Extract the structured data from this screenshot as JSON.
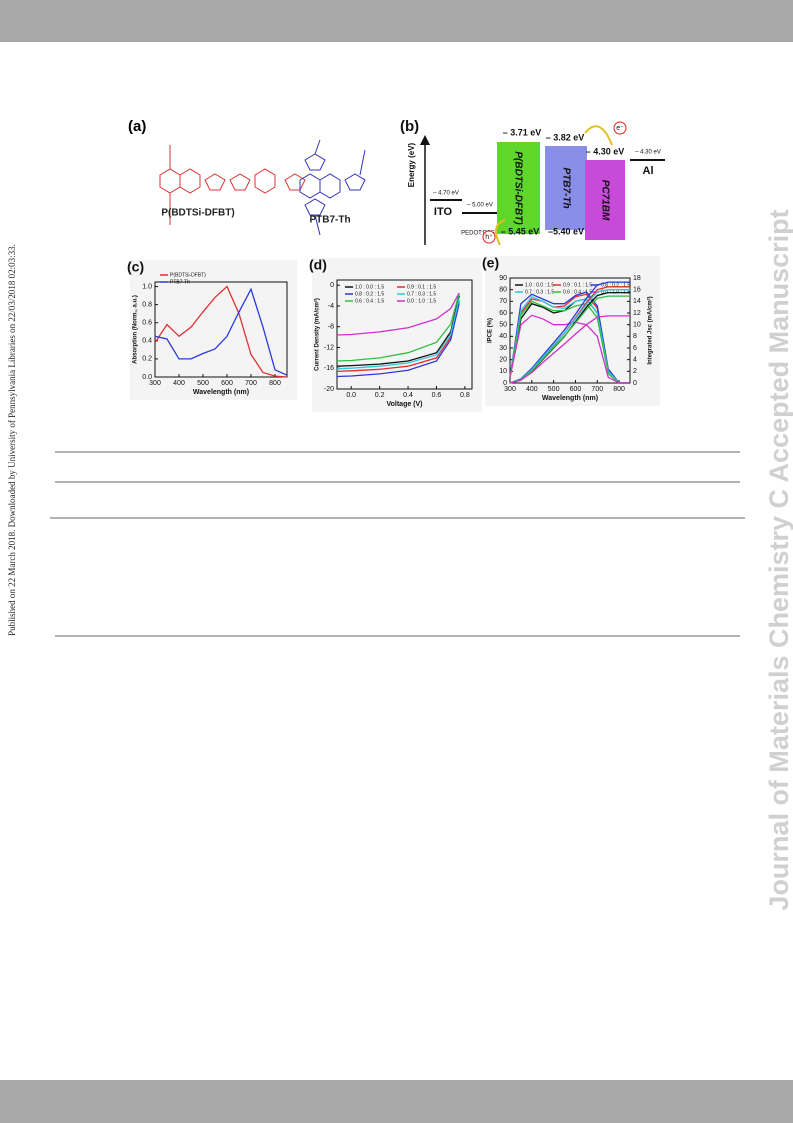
{
  "sidebar": "Published on 22 March 2018. Downloaded by University of Pennsylvania Libraries on 22/03/2018 02:03:33.",
  "watermark": "Journal of Materials Chemistry C Accepted Manuscript",
  "figure_a": {
    "label": "(a)",
    "polymers": [
      "P(BDTSi-DFBT)",
      "PTB7-Th"
    ]
  },
  "figure_b": {
    "label": "(b)",
    "y_label": "Energy (eV)",
    "ito": "ITO",
    "ito_level": "– 4.70 eV",
    "pedot": "PEDOT:PSS",
    "pedot_level": "– 5.00 eV",
    "donor1": "P(BDTSi-DFBT)",
    "donor1_lumo": "– 3.71 eV",
    "donor1_homo": "– 5.45 eV",
    "donor2": "PTB7-Th",
    "donor2_lumo": "– 3.82 eV",
    "donor2_homo": "–5.40 eV",
    "acceptor": "PC71BM",
    "acceptor_lumo": "– 4.30 eV",
    "al": "Al",
    "al_level": "– 4.30 eV",
    "electron": "e⁻",
    "hole": "h⁺"
  },
  "chart_data": [
    {
      "type": "line",
      "panel_label": "(c)",
      "x_label": "Wavelength (nm)",
      "y_label": "Absorption (Norm., a.u.)",
      "x": [
        300,
        350,
        400,
        450,
        500,
        550,
        600,
        650,
        700,
        750,
        800,
        850
      ],
      "series": [
        {
          "name": "P(BDTSi-DFBT)",
          "color": "#e03030",
          "values": [
            0.38,
            0.58,
            0.45,
            0.55,
            0.72,
            0.88,
            1.0,
            0.7,
            0.25,
            0.05,
            0.01,
            0.0
          ]
        },
        {
          "name": "PTB7-Th",
          "color": "#2a3ad8",
          "values": [
            0.45,
            0.42,
            0.2,
            0.2,
            0.26,
            0.31,
            0.45,
            0.72,
            0.97,
            0.55,
            0.08,
            0.02
          ]
        }
      ],
      "xlim": [
        300,
        850
      ],
      "xticks": [
        300,
        400,
        500,
        600,
        700,
        800
      ],
      "ylim": [
        0,
        1.05
      ],
      "yticks": [
        {
          "value": 0,
          "label": "0.0"
        },
        {
          "value": 0.2,
          "label": "0.2"
        },
        {
          "value": 0.4,
          "label": "0.4"
        },
        {
          "value": 0.6,
          "label": "0.6"
        },
        {
          "value": 0.8,
          "label": "0.8"
        },
        {
          "value": 1,
          "label": "1.0"
        }
      ]
    },
    {
      "type": "line",
      "panel_label": "(d)",
      "x_label": "Voltage (V)",
      "y_label": "Current Density (mA/cm²)",
      "x": [
        -0.1,
        0,
        0.2,
        0.4,
        0.6,
        0.7,
        0.76
      ],
      "series": [
        {
          "name": "1.0 : 0.0 : 1.5",
          "color": "#111111",
          "values": [
            -15.6,
            -15.5,
            -15.2,
            -14.6,
            -13,
            -9,
            -2
          ]
        },
        {
          "name": "0.9 : 0.1 : 1.5",
          "color": "#e03030",
          "values": [
            -16.6,
            -16.5,
            -16.2,
            -15.6,
            -14,
            -10,
            -3
          ]
        },
        {
          "name": "0.8 : 0.2 : 1.5",
          "color": "#2a3ad8",
          "values": [
            -17.6,
            -17.5,
            -17.1,
            -16.4,
            -14.6,
            -10.5,
            -3.5
          ]
        },
        {
          "name": "0.7 : 0.3 : 1.5",
          "color": "#30c8e0",
          "values": [
            -16.1,
            -16,
            -15.6,
            -15,
            -13.4,
            -9.5,
            -2.5
          ]
        },
        {
          "name": "0.6 : 0.4 : 1.5",
          "color": "#30c040",
          "values": [
            -14.6,
            -14.5,
            -14,
            -13,
            -11,
            -7.5,
            -1.5
          ]
        },
        {
          "name": "0.0 : 1.0 : 1.5",
          "color": "#d030d0",
          "values": [
            -9.6,
            -9.5,
            -9,
            -8.2,
            -6.5,
            -4.5,
            -1.5
          ]
        }
      ],
      "xlim": [
        -0.1,
        0.85
      ],
      "xticks": [
        {
          "value": 0,
          "label": "0.0"
        },
        {
          "value": 0.2,
          "label": "0.2"
        },
        {
          "value": 0.4,
          "label": "0.4"
        },
        {
          "value": 0.6,
          "label": "0.6"
        },
        {
          "value": 0.8,
          "label": "0.8"
        }
      ],
      "ylim": [
        -20,
        1
      ],
      "yticks": [
        0,
        -4,
        -8,
        -12,
        -16,
        -20
      ]
    },
    {
      "type": "line",
      "panel_label": "(e)",
      "x_label": "Wavelength (nm)",
      "y_label": "IPCE (%)",
      "y2_label": "Integrated Jsc (mA/cm²)",
      "x": [
        300,
        350,
        400,
        450,
        500,
        550,
        600,
        650,
        700,
        750,
        800,
        850
      ],
      "series": [
        {
          "name": "1.0 : 0.0 : 1.5",
          "color": "#111111",
          "values": [
            5,
            55,
            68,
            65,
            60,
            62,
            70,
            72,
            60,
            10,
            0,
            0
          ]
        },
        {
          "name": "0.9 : 0.1 : 1.5",
          "color": "#e03030",
          "values": [
            5,
            60,
            72,
            70,
            65,
            66,
            74,
            76,
            64,
            12,
            0,
            0
          ]
        },
        {
          "name": "0.8 : 0.2 : 1.5",
          "color": "#2a3ad8",
          "values": [
            5,
            68,
            76,
            72,
            68,
            68,
            75,
            78,
            66,
            12,
            0,
            0
          ]
        },
        {
          "name": "0.7 : 0.3 : 1.5",
          "color": "#30c8e0",
          "values": [
            5,
            62,
            74,
            70,
            65,
            64,
            70,
            72,
            60,
            10,
            0,
            0
          ]
        },
        {
          "name": "0.6 : 0.4 : 1.5",
          "color": "#30c040",
          "values": [
            5,
            58,
            70,
            66,
            62,
            62,
            66,
            68,
            56,
            8,
            0,
            0
          ]
        },
        {
          "name": "0.0 : 1.0 : 1.5",
          "color": "#d030d0",
          "values": [
            5,
            50,
            58,
            55,
            50,
            50,
            52,
            50,
            40,
            5,
            0,
            0
          ]
        },
        {
          "axis": "y2",
          "color": "#111111",
          "values": [
            0,
            0.5,
            2,
            4,
            6,
            8,
            10.5,
            13,
            15,
            15.5,
            15.5,
            15.5
          ]
        },
        {
          "axis": "y2",
          "color": "#e03030",
          "values": [
            0,
            0.6,
            2.2,
            4.3,
            6.4,
            8.6,
            11.2,
            13.8,
            16,
            16.5,
            16.5,
            16.5
          ]
        },
        {
          "axis": "y2",
          "color": "#2a3ad8",
          "values": [
            0,
            0.7,
            2.5,
            4.7,
            6.9,
            9.1,
            11.8,
            14.5,
            16.8,
            17.3,
            17.3,
            17.3
          ]
        },
        {
          "axis": "y2",
          "color": "#30c8e0",
          "values": [
            0,
            0.6,
            2.3,
            4.4,
            6.5,
            8.6,
            11,
            13.5,
            15.6,
            16,
            16,
            16
          ]
        },
        {
          "axis": "y2",
          "color": "#30c040",
          "values": [
            0,
            0.6,
            2.1,
            4.1,
            6.1,
            8.1,
            10.3,
            12.6,
            14.5,
            14.9,
            14.9,
            14.9
          ]
        },
        {
          "axis": "y2",
          "color": "#d030d0",
          "values": [
            0,
            0.5,
            1.8,
            3.5,
            5.1,
            6.7,
            8.4,
            10,
            11.3,
            11.5,
            11.5,
            11.5
          ]
        }
      ],
      "xlim": [
        300,
        850
      ],
      "xticks": [
        300,
        400,
        500,
        600,
        700,
        800
      ],
      "ylim": [
        0,
        90
      ],
      "yticks": [
        0,
        10,
        20,
        30,
        40,
        50,
        60,
        70,
        80,
        90
      ],
      "y2lim": [
        0,
        18
      ],
      "y2ticks": [
        0,
        2,
        4,
        6,
        8,
        10,
        12,
        14,
        16,
        18
      ]
    }
  ]
}
